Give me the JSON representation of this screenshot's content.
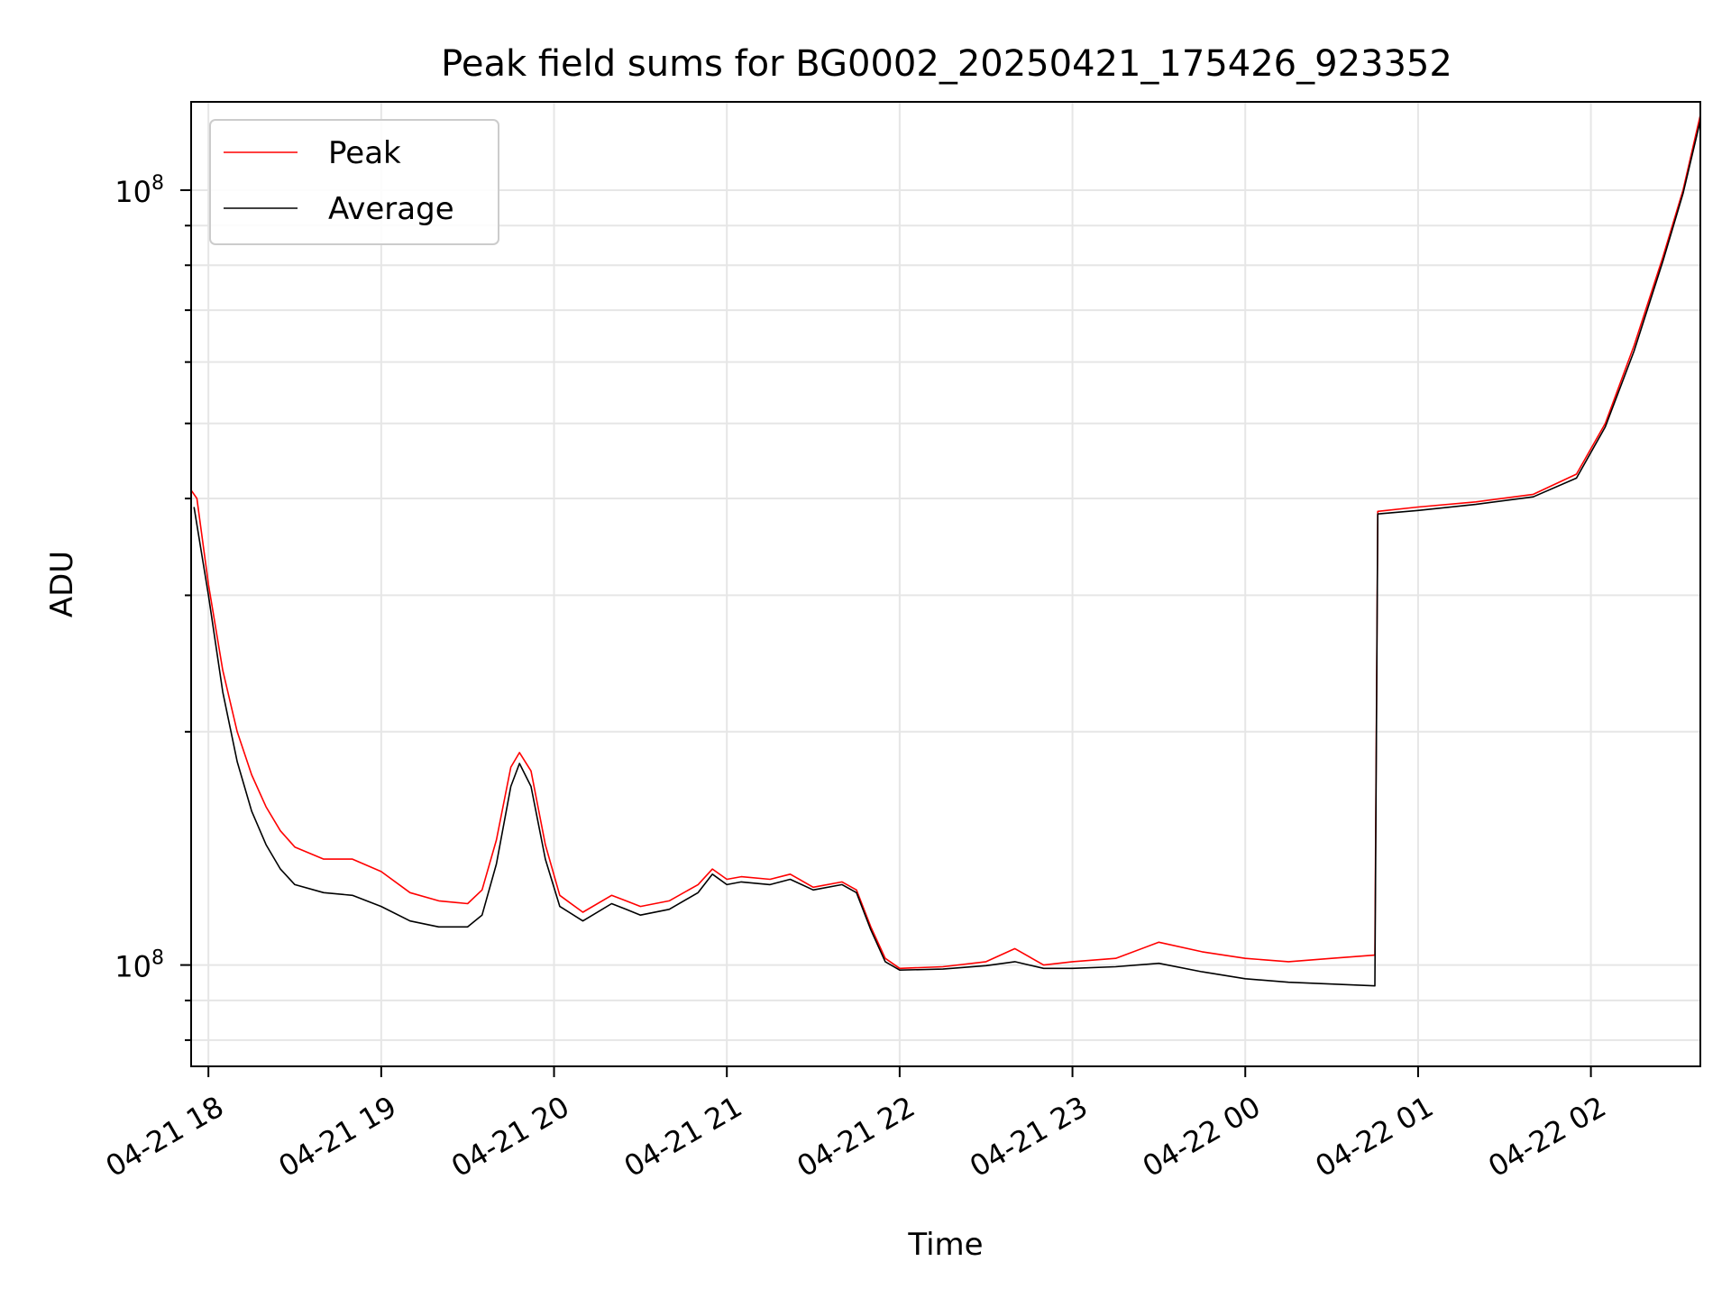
{
  "chart_data": {
    "type": "line",
    "title": "Peak field sums for BG0002_20250421_175426_923352",
    "xlabel": "Time",
    "ylabel": "ADU",
    "x_ticks": [
      "04-21 18",
      "04-21 19",
      "04-21 20",
      "04-21 21",
      "04-21 22",
      "04-21 23",
      "04-22 00",
      "04-22 01",
      "04-22 02"
    ],
    "y_tick_label": "10^8",
    "y_tick_base": "10",
    "y_tick_exp": "8",
    "y_scale": "log",
    "ylim": [
      7400000,
      130000000
    ],
    "xlim": [
      "2025-04-21 17:54",
      "2025-04-22 02:38"
    ],
    "grid": true,
    "legend": "top-left",
    "series": [
      {
        "name": "Peak",
        "color": "#ff0000",
        "points": [
          [
            "2025-04-21 17:54",
            41000000
          ],
          [
            "2025-04-21 17:56",
            40000000
          ],
          [
            "2025-04-21 18:00",
            31000000
          ],
          [
            "2025-04-21 18:05",
            24000000
          ],
          [
            "2025-04-21 18:10",
            20000000
          ],
          [
            "2025-04-21 18:15",
            17600000
          ],
          [
            "2025-04-21 18:20",
            16000000
          ],
          [
            "2025-04-21 18:25",
            14900000
          ],
          [
            "2025-04-21 18:30",
            14200000
          ],
          [
            "2025-04-21 18:40",
            13700000
          ],
          [
            "2025-04-21 18:50",
            13700000
          ],
          [
            "2025-04-21 19:00",
            13200000
          ],
          [
            "2025-04-21 19:10",
            12400000
          ],
          [
            "2025-04-21 19:20",
            12100000
          ],
          [
            "2025-04-21 19:30",
            12000000
          ],
          [
            "2025-04-21 19:35",
            12500000
          ],
          [
            "2025-04-21 19:40",
            14500000
          ],
          [
            "2025-04-21 19:45",
            18000000
          ],
          [
            "2025-04-21 19:48",
            18800000
          ],
          [
            "2025-04-21 19:52",
            17800000
          ],
          [
            "2025-04-21 19:57",
            14300000
          ],
          [
            "2025-04-21 20:02",
            12300000
          ],
          [
            "2025-04-21 20:10",
            11700000
          ],
          [
            "2025-04-21 20:20",
            12300000
          ],
          [
            "2025-04-21 20:25",
            12100000
          ],
          [
            "2025-04-21 20:30",
            11900000
          ],
          [
            "2025-04-21 20:40",
            12100000
          ],
          [
            "2025-04-21 20:50",
            12700000
          ],
          [
            "2025-04-21 20:55",
            13300000
          ],
          [
            "2025-04-21 21:00",
            12900000
          ],
          [
            "2025-04-21 21:05",
            13000000
          ],
          [
            "2025-04-21 21:15",
            12900000
          ],
          [
            "2025-04-21 21:22",
            13100000
          ],
          [
            "2025-04-21 21:30",
            12600000
          ],
          [
            "2025-04-21 21:40",
            12800000
          ],
          [
            "2025-04-21 21:45",
            12500000
          ],
          [
            "2025-04-21 21:50",
            11200000
          ],
          [
            "2025-04-21 21:55",
            10200000
          ],
          [
            "2025-04-21 22:00",
            9900000
          ],
          [
            "2025-04-21 22:15",
            9950000
          ],
          [
            "2025-04-21 22:30",
            10100000
          ],
          [
            "2025-04-21 22:40",
            10500000
          ],
          [
            "2025-04-21 22:50",
            10000000
          ],
          [
            "2025-04-21 23:00",
            10100000
          ],
          [
            "2025-04-21 23:15",
            10200000
          ],
          [
            "2025-04-21 23:30",
            10700000
          ],
          [
            "2025-04-21 23:45",
            10400000
          ],
          [
            "2025-04-22 00:00",
            10200000
          ],
          [
            "2025-04-22 00:15",
            10100000
          ],
          [
            "2025-04-22 00:30",
            10200000
          ],
          [
            "2025-04-22 00:45",
            10300000
          ],
          [
            "2025-04-22 00:46",
            38500000
          ],
          [
            "2025-04-22 01:00",
            39000000
          ],
          [
            "2025-04-22 01:20",
            39600000
          ],
          [
            "2025-04-22 01:40",
            40500000
          ],
          [
            "2025-04-22 01:55",
            43000000
          ],
          [
            "2025-04-22 02:05",
            50000000
          ],
          [
            "2025-04-22 02:15",
            63000000
          ],
          [
            "2025-04-22 02:25",
            82000000
          ],
          [
            "2025-04-22 02:32",
            100000000
          ],
          [
            "2025-04-22 02:38",
            125000000
          ]
        ]
      },
      {
        "name": "Average",
        "color": "#000000",
        "points": [
          [
            "2025-04-21 17:55",
            39000000
          ],
          [
            "2025-04-21 18:00",
            30000000
          ],
          [
            "2025-04-21 18:05",
            22500000
          ],
          [
            "2025-04-21 18:10",
            18300000
          ],
          [
            "2025-04-21 18:15",
            15800000
          ],
          [
            "2025-04-21 18:20",
            14300000
          ],
          [
            "2025-04-21 18:25",
            13300000
          ],
          [
            "2025-04-21 18:30",
            12700000
          ],
          [
            "2025-04-21 18:40",
            12400000
          ],
          [
            "2025-04-21 18:50",
            12300000
          ],
          [
            "2025-04-21 19:00",
            11900000
          ],
          [
            "2025-04-21 19:10",
            11400000
          ],
          [
            "2025-04-21 19:20",
            11200000
          ],
          [
            "2025-04-21 19:30",
            11200000
          ],
          [
            "2025-04-21 19:35",
            11600000
          ],
          [
            "2025-04-21 19:40",
            13500000
          ],
          [
            "2025-04-21 19:45",
            17000000
          ],
          [
            "2025-04-21 19:48",
            18200000
          ],
          [
            "2025-04-21 19:52",
            17000000
          ],
          [
            "2025-04-21 19:57",
            13700000
          ],
          [
            "2025-04-21 20:02",
            11900000
          ],
          [
            "2025-04-21 20:10",
            11400000
          ],
          [
            "2025-04-21 20:20",
            12000000
          ],
          [
            "2025-04-21 20:25",
            11800000
          ],
          [
            "2025-04-21 20:30",
            11600000
          ],
          [
            "2025-04-21 20:40",
            11800000
          ],
          [
            "2025-04-21 20:50",
            12400000
          ],
          [
            "2025-04-21 20:55",
            13100000
          ],
          [
            "2025-04-21 21:00",
            12700000
          ],
          [
            "2025-04-21 21:05",
            12800000
          ],
          [
            "2025-04-21 21:15",
            12700000
          ],
          [
            "2025-04-21 21:22",
            12900000
          ],
          [
            "2025-04-21 21:30",
            12500000
          ],
          [
            "2025-04-21 21:40",
            12700000
          ],
          [
            "2025-04-21 21:45",
            12400000
          ],
          [
            "2025-04-21 21:50",
            11100000
          ],
          [
            "2025-04-21 21:55",
            10100000
          ],
          [
            "2025-04-21 22:00",
            9850000
          ],
          [
            "2025-04-21 22:15",
            9880000
          ],
          [
            "2025-04-21 22:30",
            9980000
          ],
          [
            "2025-04-21 22:40",
            10100000
          ],
          [
            "2025-04-21 22:50",
            9900000
          ],
          [
            "2025-04-21 23:00",
            9900000
          ],
          [
            "2025-04-21 23:15",
            9950000
          ],
          [
            "2025-04-21 23:30",
            10050000
          ],
          [
            "2025-04-21 23:45",
            9800000
          ],
          [
            "2025-04-22 00:00",
            9600000
          ],
          [
            "2025-04-22 00:15",
            9500000
          ],
          [
            "2025-04-22 00:30",
            9450000
          ],
          [
            "2025-04-22 00:45",
            9400000
          ],
          [
            "2025-04-22 00:46",
            38200000
          ],
          [
            "2025-04-22 01:00",
            38600000
          ],
          [
            "2025-04-22 01:20",
            39300000
          ],
          [
            "2025-04-22 01:40",
            40200000
          ],
          [
            "2025-04-22 01:55",
            42500000
          ],
          [
            "2025-04-22 02:05",
            49500000
          ],
          [
            "2025-04-22 02:15",
            62000000
          ],
          [
            "2025-04-22 02:25",
            81000000
          ],
          [
            "2025-04-22 02:32",
            99000000
          ],
          [
            "2025-04-22 02:38",
            123000000
          ]
        ]
      }
    ]
  }
}
